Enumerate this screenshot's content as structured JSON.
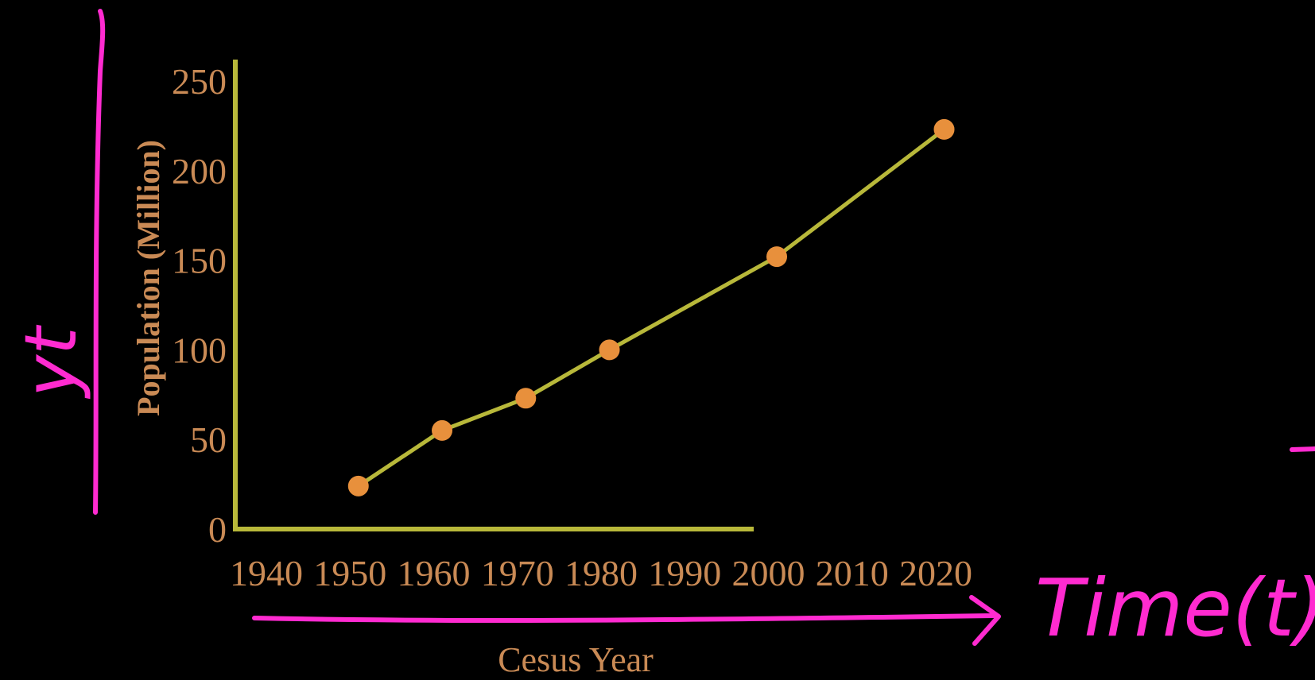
{
  "chart_data": {
    "type": "line",
    "title": "",
    "xlabel": "Cesus Year",
    "ylabel": "Population (Million)",
    "x_ticks": [
      "1940",
      "1950",
      "1960",
      "1970",
      "1980",
      "1990",
      "2000",
      "2010",
      "2020"
    ],
    "y_ticks": [
      "0",
      "50",
      "100",
      "150",
      "200",
      "250"
    ],
    "xlim": [
      1940,
      2020
    ],
    "ylim": [
      0,
      250
    ],
    "grid": false,
    "series": [
      {
        "x": [
          1951,
          1961,
          1971,
          1981,
          2001,
          2021
        ],
        "y": [
          24,
          55,
          73,
          100,
          152,
          223
        ]
      }
    ],
    "colors": {
      "line": "#b8b83a",
      "axes": "#b8b83a",
      "markers": "#e8903c",
      "text": "#c98a55"
    }
  },
  "annotations": {
    "y_axis_note": "yt",
    "x_axis_note": "Time(t)",
    "ink_color": "#ff2bd0"
  }
}
